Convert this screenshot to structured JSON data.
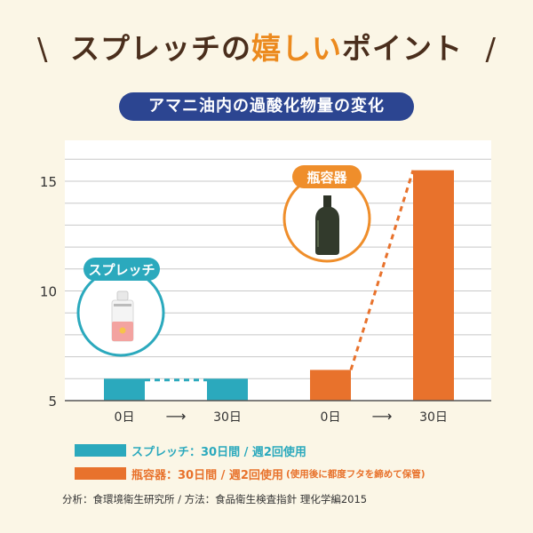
{
  "header": {
    "headline_part1": "スプレッチの",
    "headline_part2": "嬉しい",
    "headline_part3": "ポイント",
    "slash_left": "\\",
    "slash_right": "/"
  },
  "subtitle": "アマニ油内の過酸化物量の変化",
  "colors": {
    "splecci": "#2ba9bd",
    "bottle": "#e8722c",
    "bottle_badge": "#ef8e2b",
    "navy": "#2c4591",
    "grid": "#c8c8c8"
  },
  "chart_data": {
    "type": "bar",
    "categories": [
      "0日",
      "30日",
      "0日",
      "30日"
    ],
    "series": [
      {
        "name": "スプレッチ",
        "values": [
          6,
          6,
          null,
          null
        ]
      },
      {
        "name": "瓶容器",
        "values": [
          null,
          null,
          6.4,
          15.5
        ]
      }
    ],
    "ylim": [
      5,
      17
    ],
    "yticks": [
      5,
      10,
      15
    ],
    "grid": true,
    "arrows": [
      "⟶",
      "⟶"
    ],
    "badges": [
      "スプレッチ",
      "瓶容器"
    ],
    "legend_placement": "bottom"
  },
  "legend": {
    "splecci_label": "スプレッチ：30日間 / 週2回使用",
    "bottle_label": "瓶容器：30日間 / 週2回使用",
    "bottle_note": "(使用後に都度フタを締めて保管)"
  },
  "source": "分析：食環境衛生研究所 / 方法：食品衛生検査指針 理化学編2015"
}
